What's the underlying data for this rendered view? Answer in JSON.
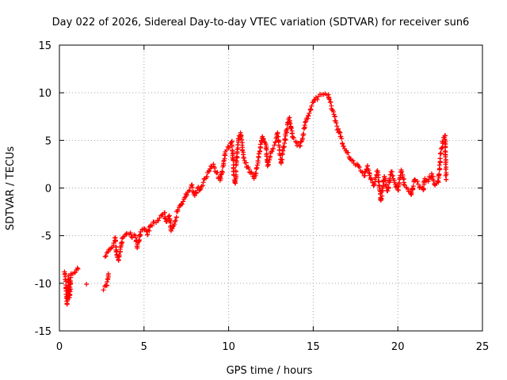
{
  "chart_data": {
    "type": "scatter",
    "title": "Day 022 of 2026, Sidereal Day-to-day VTEC variation (SDTVAR) for receiver sun6",
    "xlabel": "GPS time / hours",
    "ylabel": "SDTVAR / TECUs",
    "xlim": [
      0,
      25
    ],
    "ylim": [
      -15,
      15
    ],
    "xticks": [
      0,
      5,
      10,
      15,
      20,
      25
    ],
    "yticks": [
      -15,
      -10,
      -5,
      0,
      5,
      10,
      15
    ],
    "xtick_labels": [
      "0",
      "5",
      "10",
      "15",
      "20",
      "25"
    ],
    "ytick_labels": [
      "-15",
      "-10",
      "-5",
      "0",
      "5",
      "10",
      "15"
    ],
    "grid": true,
    "marker": "+",
    "series": [
      {
        "name": "SDTVAR",
        "color": "#ff0000",
        "description_points": "approximate envelope of the plotted '+' markers, [hour, TECU]",
        "points": [
          [
            0.3,
            -8.8
          ],
          [
            0.35,
            -9.6
          ],
          [
            0.4,
            -10.8
          ],
          [
            0.45,
            -12.2
          ],
          [
            0.5,
            -11.0
          ],
          [
            0.55,
            -9.2
          ],
          [
            0.6,
            -11.5
          ],
          [
            0.7,
            -9.0
          ],
          [
            0.9,
            -8.9
          ],
          [
            1.0,
            -8.6
          ],
          [
            1.1,
            -8.5
          ],
          [
            1.6,
            -10.1
          ],
          [
            2.6,
            -10.7
          ],
          [
            2.8,
            -10.2
          ],
          [
            2.9,
            -9.0
          ],
          [
            2.7,
            -7.2
          ],
          [
            2.8,
            -6.8
          ],
          [
            3.0,
            -6.4
          ],
          [
            3.2,
            -6.0
          ],
          [
            3.3,
            -5.2
          ],
          [
            3.4,
            -7.1
          ],
          [
            3.5,
            -7.6
          ],
          [
            3.6,
            -6.7
          ],
          [
            3.7,
            -5.3
          ],
          [
            3.9,
            -4.9
          ],
          [
            4.0,
            -4.8
          ],
          [
            4.2,
            -4.7
          ],
          [
            4.3,
            -5.2
          ],
          [
            4.5,
            -5.0
          ],
          [
            4.6,
            -6.3
          ],
          [
            4.7,
            -5.6
          ],
          [
            4.8,
            -4.6
          ],
          [
            5.0,
            -4.3
          ],
          [
            5.2,
            -4.9
          ],
          [
            5.4,
            -3.9
          ],
          [
            5.6,
            -3.6
          ],
          [
            5.8,
            -3.4
          ],
          [
            6.0,
            -2.9
          ],
          [
            6.2,
            -2.6
          ],
          [
            6.3,
            -3.5
          ],
          [
            6.5,
            -2.9
          ],
          [
            6.6,
            -4.5
          ],
          [
            6.8,
            -3.8
          ],
          [
            7.0,
            -2.3
          ],
          [
            7.2,
            -1.7
          ],
          [
            7.4,
            -1.0
          ],
          [
            7.6,
            -0.4
          ],
          [
            7.8,
            0.3
          ],
          [
            8.0,
            -0.8
          ],
          [
            8.2,
            0.1
          ],
          [
            8.3,
            -0.2
          ],
          [
            8.5,
            0.6
          ],
          [
            8.7,
            1.2
          ],
          [
            8.9,
            2.0
          ],
          [
            9.1,
            2.5
          ],
          [
            9.3,
            1.6
          ],
          [
            9.5,
            0.8
          ],
          [
            9.7,
            2.4
          ],
          [
            9.8,
            3.8
          ],
          [
            10.0,
            4.3
          ],
          [
            10.2,
            4.9
          ],
          [
            10.3,
            1.4
          ],
          [
            10.4,
            0.5
          ],
          [
            10.5,
            3.8
          ],
          [
            10.6,
            5.2
          ],
          [
            10.7,
            5.8
          ],
          [
            10.9,
            3.1
          ],
          [
            11.1,
            2.2
          ],
          [
            11.3,
            1.6
          ],
          [
            11.5,
            1.0
          ],
          [
            11.7,
            2.4
          ],
          [
            11.8,
            3.6
          ],
          [
            12.0,
            5.4
          ],
          [
            12.2,
            4.6
          ],
          [
            12.3,
            2.3
          ],
          [
            12.5,
            3.8
          ],
          [
            12.7,
            4.5
          ],
          [
            12.9,
            5.8
          ],
          [
            13.0,
            4.3
          ],
          [
            13.1,
            2.6
          ],
          [
            13.3,
            4.7
          ],
          [
            13.5,
            6.9
          ],
          [
            13.6,
            7.4
          ],
          [
            13.8,
            5.3
          ],
          [
            14.0,
            4.8
          ],
          [
            14.2,
            4.4
          ],
          [
            14.4,
            5.5
          ],
          [
            14.5,
            6.6
          ],
          [
            14.7,
            7.6
          ],
          [
            14.9,
            8.6
          ],
          [
            15.1,
            9.3
          ],
          [
            15.3,
            9.6
          ],
          [
            15.5,
            9.8
          ],
          [
            15.7,
            9.9
          ],
          [
            15.9,
            9.8
          ],
          [
            16.0,
            9.0
          ],
          [
            16.2,
            8.0
          ],
          [
            16.4,
            6.5
          ],
          [
            16.6,
            5.4
          ],
          [
            16.8,
            4.4
          ],
          [
            17.0,
            3.7
          ],
          [
            17.2,
            3.0
          ],
          [
            17.4,
            2.6
          ],
          [
            17.6,
            2.5
          ],
          [
            17.8,
            1.8
          ],
          [
            18.0,
            1.3
          ],
          [
            18.2,
            2.3
          ],
          [
            18.4,
            0.9
          ],
          [
            18.6,
            0.3
          ],
          [
            18.8,
            1.8
          ],
          [
            19.0,
            -1.3
          ],
          [
            19.2,
            1.2
          ],
          [
            19.4,
            -0.3
          ],
          [
            19.6,
            1.7
          ],
          [
            19.8,
            0.6
          ],
          [
            20.0,
            -0.2
          ],
          [
            20.2,
            1.9
          ],
          [
            20.4,
            0.3
          ],
          [
            20.6,
            -0.1
          ],
          [
            20.8,
            -0.7
          ],
          [
            21.0,
            0.9
          ],
          [
            21.2,
            0.4
          ],
          [
            21.4,
            0.0
          ],
          [
            21.5,
            -0.2
          ],
          [
            21.6,
            1.0
          ],
          [
            21.8,
            0.7
          ],
          [
            22.0,
            1.5
          ],
          [
            22.2,
            0.3
          ],
          [
            22.4,
            0.6
          ],
          [
            22.5,
            3.1
          ],
          [
            22.6,
            4.2
          ],
          [
            22.7,
            5.3
          ],
          [
            22.8,
            5.5
          ],
          [
            22.85,
            0.9
          ]
        ]
      }
    ]
  }
}
